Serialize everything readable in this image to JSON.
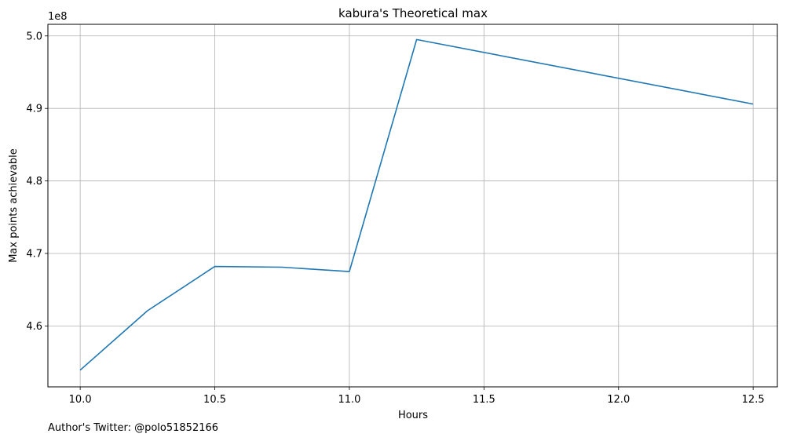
{
  "chart_data": {
    "type": "line",
    "title": "kabura's Theoretical max",
    "xlabel": "Hours",
    "ylabel": "Max points achievable",
    "y_offset_label": "1e8",
    "grid": true,
    "x_ticks": [
      "10.0",
      "10.5",
      "11.0",
      "11.5",
      "12.0",
      "12.5"
    ],
    "x_tick_values": [
      10.0,
      10.5,
      11.0,
      11.5,
      12.0,
      12.5
    ],
    "y_ticks": [
      "4.6",
      "4.7",
      "4.8",
      "4.9",
      "5.0"
    ],
    "y_tick_values": [
      4.6,
      4.7,
      4.8,
      4.9,
      5.0
    ],
    "xlim": [
      9.88,
      12.59
    ],
    "ylim": [
      4.516,
      5.016
    ],
    "series": [
      {
        "color": "#1f77b4",
        "x": [
          10.0,
          10.25,
          10.5,
          10.75,
          11.0,
          11.25,
          12.5
        ],
        "y": [
          4.539,
          4.621,
          4.682,
          4.681,
          4.675,
          4.995,
          4.906
        ]
      }
    ]
  },
  "footnote": "Author's Twitter: @polo51852166"
}
